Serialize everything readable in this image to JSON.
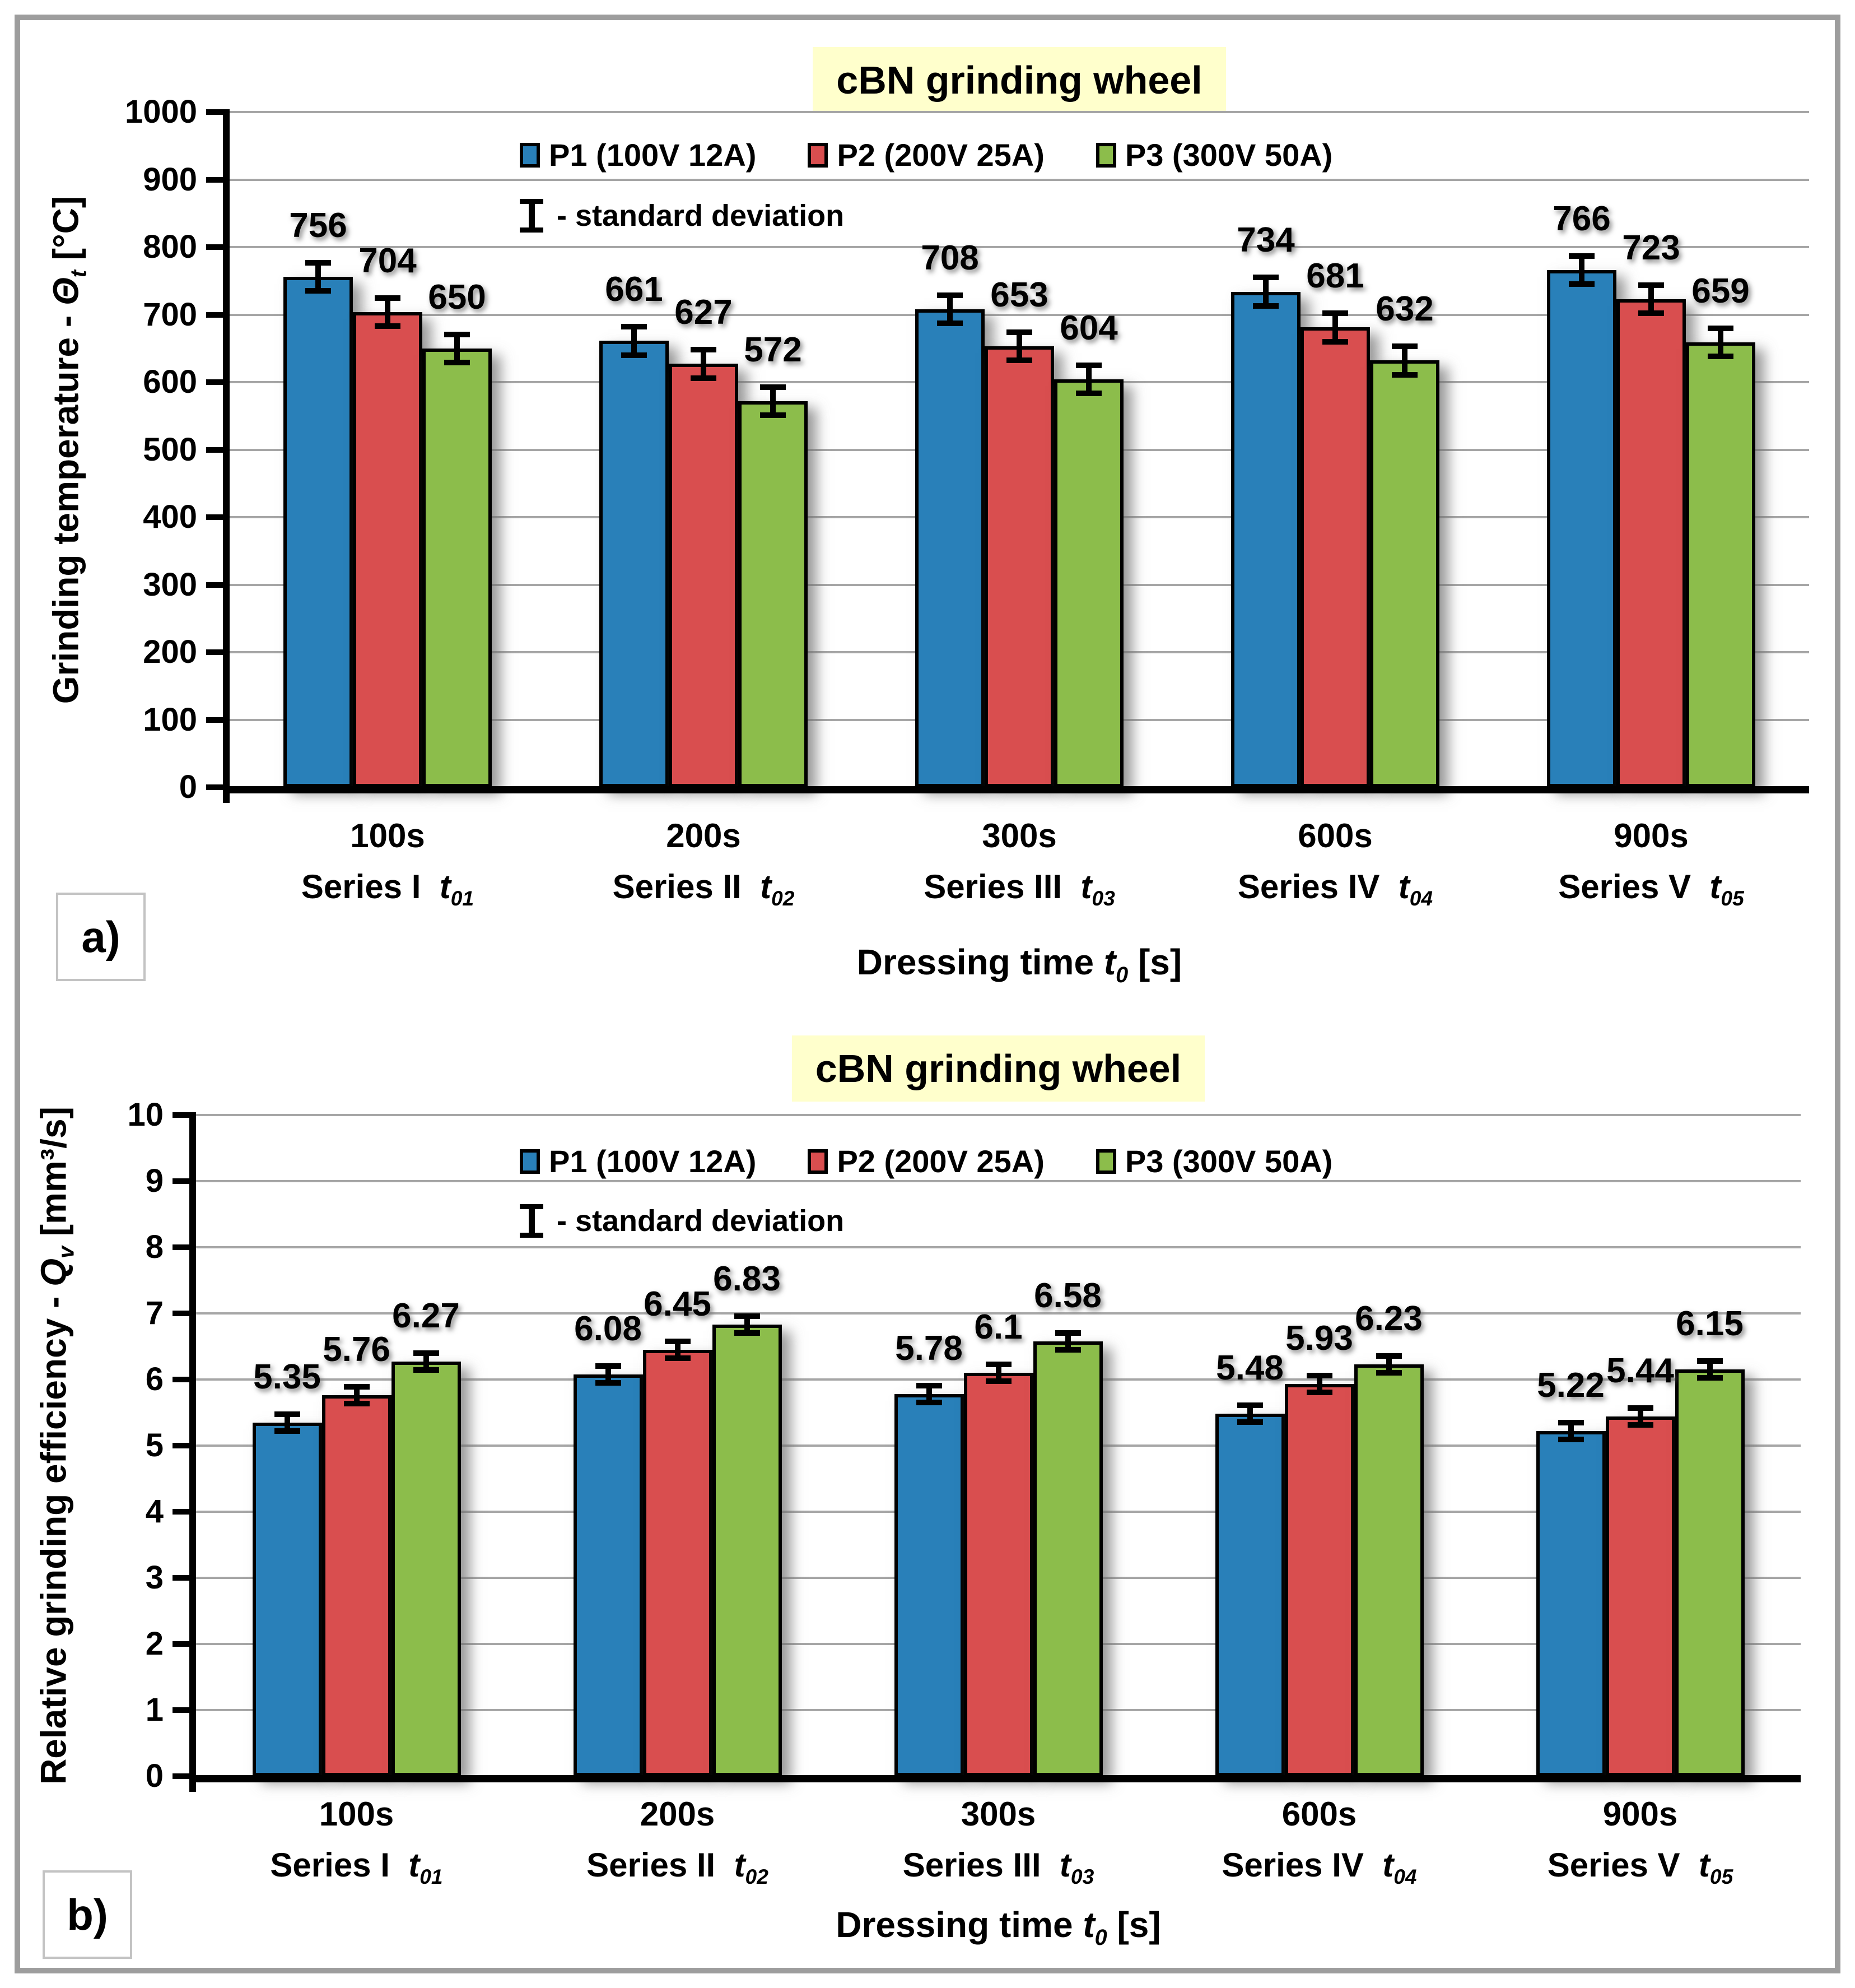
{
  "frame_color": "#9d9d9d",
  "chart_data": [
    {
      "type": "bar",
      "panel_label": "a)",
      "title": "cBN grinding wheel",
      "title_highlight": "#ffffcc",
      "sd_note": "- standard deviation",
      "ylabel": {
        "prefix": "Grinding temperature - ",
        "symbol": "Θ",
        "sub": "t",
        "unit": " [°C]"
      },
      "xlabel": {
        "prefix": "Dressing time ",
        "symbol": "t",
        "sub": "0",
        "unit": " [s]"
      },
      "ylim": [
        0,
        1000
      ],
      "ytick_step": 100,
      "grid": true,
      "legend_position": "top-inside",
      "categories": [
        {
          "time": "100s",
          "series": "Series I",
          "t_symbol": "t",
          "t_sub": "01"
        },
        {
          "time": "200s",
          "series": "Series II",
          "t_symbol": "t",
          "t_sub": "02"
        },
        {
          "time": "300s",
          "series": "Series III",
          "t_symbol": "t",
          "t_sub": "03"
        },
        {
          "time": "600s",
          "series": "Series IV",
          "t_symbol": "t",
          "t_sub": "04"
        },
        {
          "time": "900s",
          "series": "Series V",
          "t_symbol": "t",
          "t_sub": "05"
        }
      ],
      "series": [
        {
          "name": "P1 (100V 12A)",
          "color": "#2980b9",
          "values": [
            756,
            661,
            708,
            734,
            766
          ]
        },
        {
          "name": "P2 (200V 25A)",
          "color": "#d94e4f",
          "values": [
            704,
            627,
            653,
            681,
            723
          ]
        },
        {
          "name": "P3 (300V 50A)",
          "color": "#8cbd4b",
          "values": [
            650,
            572,
            604,
            632,
            659
          ]
        }
      ],
      "error_bar_approx": 25
    },
    {
      "type": "bar",
      "panel_label": "b)",
      "title": "cBN grinding wheel",
      "title_highlight": "#ffffcc",
      "sd_note": "- standard deviation",
      "ylabel": {
        "prefix": "Relative grinding efficiency - ",
        "symbol": "Q",
        "sub": "v",
        "unit": " [mm³/s]"
      },
      "xlabel": {
        "prefix": "Dressing time ",
        "symbol": "t",
        "sub": "0",
        "unit": " [s]"
      },
      "ylim": [
        0,
        10
      ],
      "ytick_step": 1,
      "grid": true,
      "legend_position": "top-inside",
      "categories": [
        {
          "time": "100s",
          "series": "Series I",
          "t_symbol": "t",
          "t_sub": "01"
        },
        {
          "time": "200s",
          "series": "Series II",
          "t_symbol": "t",
          "t_sub": "02"
        },
        {
          "time": "300s",
          "series": "Series III",
          "t_symbol": "t",
          "t_sub": "03"
        },
        {
          "time": "600s",
          "series": "Series IV",
          "t_symbol": "t",
          "t_sub": "04"
        },
        {
          "time": "900s",
          "series": "Series V",
          "t_symbol": "t",
          "t_sub": "05"
        }
      ],
      "series": [
        {
          "name": "P1 (100V 12A)",
          "color": "#2980b9",
          "values": [
            5.35,
            6.08,
            5.78,
            5.48,
            5.22
          ]
        },
        {
          "name": "P2 (200V 25A)",
          "color": "#d94e4f",
          "values": [
            5.76,
            6.45,
            6.1,
            5.93,
            5.44
          ]
        },
        {
          "name": "P3 (300V 50A)",
          "color": "#8cbd4b",
          "values": [
            6.27,
            6.83,
            6.58,
            6.23,
            6.15
          ]
        }
      ],
      "error_bar_approx": 0.17
    }
  ]
}
